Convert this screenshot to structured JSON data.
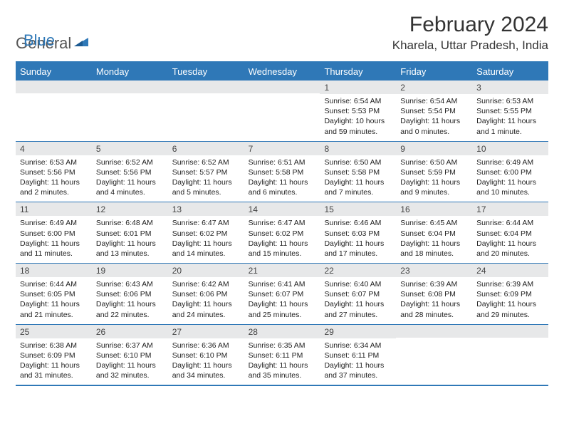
{
  "colors": {
    "brand": "#2f78b7",
    "header_bg": "#2f78b7",
    "header_text": "#ffffff",
    "daynum_bg": "#e7e8e9",
    "border": "#2f78b7",
    "body_text": "#222222"
  },
  "logo": {
    "part1": "General",
    "part2": "Blue"
  },
  "title": "February 2024",
  "location": "Kharela, Uttar Pradesh, India",
  "weekdays": [
    "Sunday",
    "Monday",
    "Tuesday",
    "Wednesday",
    "Thursday",
    "Friday",
    "Saturday"
  ],
  "weeks": [
    [
      {
        "num": "",
        "lines": []
      },
      {
        "num": "",
        "lines": []
      },
      {
        "num": "",
        "lines": []
      },
      {
        "num": "",
        "lines": []
      },
      {
        "num": "1",
        "lines": [
          "Sunrise: 6:54 AM",
          "Sunset: 5:53 PM",
          "Daylight: 10 hours",
          "and 59 minutes."
        ]
      },
      {
        "num": "2",
        "lines": [
          "Sunrise: 6:54 AM",
          "Sunset: 5:54 PM",
          "Daylight: 11 hours",
          "and 0 minutes."
        ]
      },
      {
        "num": "3",
        "lines": [
          "Sunrise: 6:53 AM",
          "Sunset: 5:55 PM",
          "Daylight: 11 hours",
          "and 1 minute."
        ]
      }
    ],
    [
      {
        "num": "4",
        "lines": [
          "Sunrise: 6:53 AM",
          "Sunset: 5:56 PM",
          "Daylight: 11 hours",
          "and 2 minutes."
        ]
      },
      {
        "num": "5",
        "lines": [
          "Sunrise: 6:52 AM",
          "Sunset: 5:56 PM",
          "Daylight: 11 hours",
          "and 4 minutes."
        ]
      },
      {
        "num": "6",
        "lines": [
          "Sunrise: 6:52 AM",
          "Sunset: 5:57 PM",
          "Daylight: 11 hours",
          "and 5 minutes."
        ]
      },
      {
        "num": "7",
        "lines": [
          "Sunrise: 6:51 AM",
          "Sunset: 5:58 PM",
          "Daylight: 11 hours",
          "and 6 minutes."
        ]
      },
      {
        "num": "8",
        "lines": [
          "Sunrise: 6:50 AM",
          "Sunset: 5:58 PM",
          "Daylight: 11 hours",
          "and 7 minutes."
        ]
      },
      {
        "num": "9",
        "lines": [
          "Sunrise: 6:50 AM",
          "Sunset: 5:59 PM",
          "Daylight: 11 hours",
          "and 9 minutes."
        ]
      },
      {
        "num": "10",
        "lines": [
          "Sunrise: 6:49 AM",
          "Sunset: 6:00 PM",
          "Daylight: 11 hours",
          "and 10 minutes."
        ]
      }
    ],
    [
      {
        "num": "11",
        "lines": [
          "Sunrise: 6:49 AM",
          "Sunset: 6:00 PM",
          "Daylight: 11 hours",
          "and 11 minutes."
        ]
      },
      {
        "num": "12",
        "lines": [
          "Sunrise: 6:48 AM",
          "Sunset: 6:01 PM",
          "Daylight: 11 hours",
          "and 13 minutes."
        ]
      },
      {
        "num": "13",
        "lines": [
          "Sunrise: 6:47 AM",
          "Sunset: 6:02 PM",
          "Daylight: 11 hours",
          "and 14 minutes."
        ]
      },
      {
        "num": "14",
        "lines": [
          "Sunrise: 6:47 AM",
          "Sunset: 6:02 PM",
          "Daylight: 11 hours",
          "and 15 minutes."
        ]
      },
      {
        "num": "15",
        "lines": [
          "Sunrise: 6:46 AM",
          "Sunset: 6:03 PM",
          "Daylight: 11 hours",
          "and 17 minutes."
        ]
      },
      {
        "num": "16",
        "lines": [
          "Sunrise: 6:45 AM",
          "Sunset: 6:04 PM",
          "Daylight: 11 hours",
          "and 18 minutes."
        ]
      },
      {
        "num": "17",
        "lines": [
          "Sunrise: 6:44 AM",
          "Sunset: 6:04 PM",
          "Daylight: 11 hours",
          "and 20 minutes."
        ]
      }
    ],
    [
      {
        "num": "18",
        "lines": [
          "Sunrise: 6:44 AM",
          "Sunset: 6:05 PM",
          "Daylight: 11 hours",
          "and 21 minutes."
        ]
      },
      {
        "num": "19",
        "lines": [
          "Sunrise: 6:43 AM",
          "Sunset: 6:06 PM",
          "Daylight: 11 hours",
          "and 22 minutes."
        ]
      },
      {
        "num": "20",
        "lines": [
          "Sunrise: 6:42 AM",
          "Sunset: 6:06 PM",
          "Daylight: 11 hours",
          "and 24 minutes."
        ]
      },
      {
        "num": "21",
        "lines": [
          "Sunrise: 6:41 AM",
          "Sunset: 6:07 PM",
          "Daylight: 11 hours",
          "and 25 minutes."
        ]
      },
      {
        "num": "22",
        "lines": [
          "Sunrise: 6:40 AM",
          "Sunset: 6:07 PM",
          "Daylight: 11 hours",
          "and 27 minutes."
        ]
      },
      {
        "num": "23",
        "lines": [
          "Sunrise: 6:39 AM",
          "Sunset: 6:08 PM",
          "Daylight: 11 hours",
          "and 28 minutes."
        ]
      },
      {
        "num": "24",
        "lines": [
          "Sunrise: 6:39 AM",
          "Sunset: 6:09 PM",
          "Daylight: 11 hours",
          "and 29 minutes."
        ]
      }
    ],
    [
      {
        "num": "25",
        "lines": [
          "Sunrise: 6:38 AM",
          "Sunset: 6:09 PM",
          "Daylight: 11 hours",
          "and 31 minutes."
        ]
      },
      {
        "num": "26",
        "lines": [
          "Sunrise: 6:37 AM",
          "Sunset: 6:10 PM",
          "Daylight: 11 hours",
          "and 32 minutes."
        ]
      },
      {
        "num": "27",
        "lines": [
          "Sunrise: 6:36 AM",
          "Sunset: 6:10 PM",
          "Daylight: 11 hours",
          "and 34 minutes."
        ]
      },
      {
        "num": "28",
        "lines": [
          "Sunrise: 6:35 AM",
          "Sunset: 6:11 PM",
          "Daylight: 11 hours",
          "and 35 minutes."
        ]
      },
      {
        "num": "29",
        "lines": [
          "Sunrise: 6:34 AM",
          "Sunset: 6:11 PM",
          "Daylight: 11 hours",
          "and 37 minutes."
        ]
      },
      {
        "num": "",
        "lines": []
      },
      {
        "num": "",
        "lines": []
      }
    ]
  ]
}
